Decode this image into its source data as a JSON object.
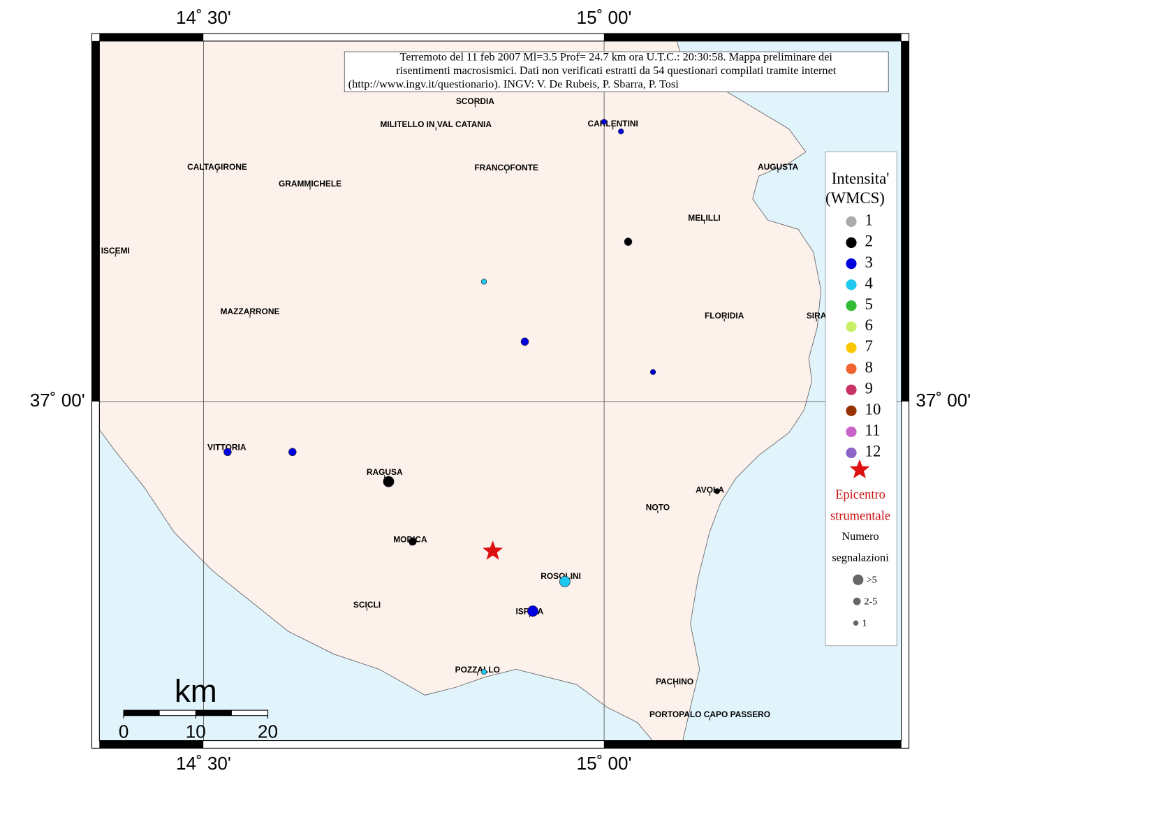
{
  "map": {
    "title_lines": [
      "Terremoto del 11 feb 2007 Ml=3.5 Prof= 24.7 km ora U.T.C.: 20:30:58.  Mappa preliminare dei",
      "risentimenti macrosismici.   Dati non verificati estratti da 54 questionari compilati tramite internet",
      "(http://www.ingv.it/questionario).   INGV: V.  De Rubeis, P.  Sbarra, P.  Tosi"
    ],
    "lonlim": [
      14.37,
      15.371
    ],
    "latlim": [
      36.576,
      37.451
    ],
    "lon_ticks": [
      {
        "value": 14.5,
        "label": "14˚ 30'"
      },
      {
        "value": 15,
        "label": "15˚ 00'"
      }
    ],
    "lat_ticks": [
      {
        "value": 37,
        "label": "37˚ 00'"
      }
    ],
    "places": [
      {
        "name": "SCORDIA",
        "lon": 14.839,
        "lat": 37.375
      },
      {
        "name": "MILITELLO IN VAL CATANIA",
        "lon": 14.79,
        "lat": 37.346
      },
      {
        "name": "CARLENTINI",
        "lon": 15.011,
        "lat": 37.347
      },
      {
        "name": "CALTAGIRONE",
        "lon": 14.517,
        "lat": 37.293
      },
      {
        "name": "GRAMMICHELE",
        "lon": 14.633,
        "lat": 37.272
      },
      {
        "name": "FRANCOFONTE",
        "lon": 14.878,
        "lat": 37.292
      },
      {
        "name": "AUGUSTA",
        "lon": 15.217,
        "lat": 37.293
      },
      {
        "name": "MELILLI",
        "lon": 15.125,
        "lat": 37.229
      },
      {
        "name": "ISCEMI",
        "lon": 14.39,
        "lat": 37.188
      },
      {
        "name": "MAZZARRONE",
        "lon": 14.558,
        "lat": 37.112
      },
      {
        "name": "FLORIDIA",
        "lon": 15.15,
        "lat": 37.107
      },
      {
        "name": "SIRA",
        "lon": 15.265,
        "lat": 37.107
      },
      {
        "name": "VITTORIA",
        "lon": 14.529,
        "lat": 36.942
      },
      {
        "name": "RAGUSA",
        "lon": 14.726,
        "lat": 36.911
      },
      {
        "name": "AVOLA",
        "lon": 15.132,
        "lat": 36.889
      },
      {
        "name": "NOTO",
        "lon": 15.067,
        "lat": 36.867
      },
      {
        "name": "MODICA",
        "lon": 14.758,
        "lat": 36.827
      },
      {
        "name": "ROSOLINI",
        "lon": 14.946,
        "lat": 36.781
      },
      {
        "name": "SCICLI",
        "lon": 14.704,
        "lat": 36.745
      },
      {
        "name": "ISPICA",
        "lon": 14.907,
        "lat": 36.737
      },
      {
        "name": "POZZALLO",
        "lon": 14.842,
        "lat": 36.664
      },
      {
        "name": "PACHINO",
        "lon": 15.088,
        "lat": 36.649
      },
      {
        "name": "PORTOPALO CAPO PASSERO",
        "lon": 15.132,
        "lat": 36.608
      }
    ],
    "points": [
      {
        "lon": 15.0,
        "lat": 37.35,
        "intensity": 3,
        "reports": "1"
      },
      {
        "lon": 15.021,
        "lat": 37.338,
        "intensity": 3,
        "reports": "1"
      },
      {
        "lon": 15.03,
        "lat": 37.2,
        "intensity": 2,
        "reports": "2-5"
      },
      {
        "lon": 14.85,
        "lat": 37.15,
        "intensity": 4,
        "reports": "1"
      },
      {
        "lon": 14.901,
        "lat": 37.075,
        "intensity": 3,
        "reports": "2-5"
      },
      {
        "lon": 15.061,
        "lat": 37.037,
        "intensity": 3,
        "reports": "1"
      },
      {
        "lon": 14.53,
        "lat": 36.937,
        "intensity": 3,
        "reports": "2-5"
      },
      {
        "lon": 14.611,
        "lat": 36.937,
        "intensity": 3,
        "reports": "2-5"
      },
      {
        "lon": 14.731,
        "lat": 36.9,
        "intensity": 2,
        "reports": ">5"
      },
      {
        "lon": 14.761,
        "lat": 36.825,
        "intensity": 2,
        "reports": "2-5"
      },
      {
        "lon": 15.141,
        "lat": 36.888,
        "intensity": 2,
        "reports": "1"
      },
      {
        "lon": 14.951,
        "lat": 36.775,
        "intensity": 4,
        "reports": ">5"
      },
      {
        "lon": 14.911,
        "lat": 36.738,
        "intensity": 3,
        "reports": ">5"
      },
      {
        "lon": 14.85,
        "lat": 36.662,
        "intensity": 4,
        "reports": "1"
      }
    ],
    "epicenter": {
      "lon": 14.861,
      "lat": 36.813
    },
    "legend": {
      "title_lines": [
        "Intensita'",
        "(WMCS)"
      ],
      "levels": [
        {
          "value": 1,
          "color": "#aaaaaa"
        },
        {
          "value": 2,
          "color": "#000000"
        },
        {
          "value": 3,
          "color": "#0000dd"
        },
        {
          "value": 4,
          "color": "#1ec8f0"
        },
        {
          "value": 5,
          "color": "#33bb33"
        },
        {
          "value": 6,
          "color": "#c8f064"
        },
        {
          "value": 7,
          "color": "#fac800"
        },
        {
          "value": 8,
          "color": "#f06432"
        },
        {
          "value": 9,
          "color": "#c83264"
        },
        {
          "value": 10,
          "color": "#963200"
        },
        {
          "value": 11,
          "color": "#c864c8"
        },
        {
          "value": 12,
          "color": "#8c64c8"
        }
      ],
      "epicenter_lines": [
        "Epicentro",
        "strumentale"
      ],
      "count_lines": [
        "Numero",
        "segnalazioni"
      ],
      "counts": [
        ">5",
        "2-5",
        "1"
      ]
    },
    "scale": {
      "unit": "km",
      "ticks": [
        0,
        10,
        20
      ]
    }
  }
}
